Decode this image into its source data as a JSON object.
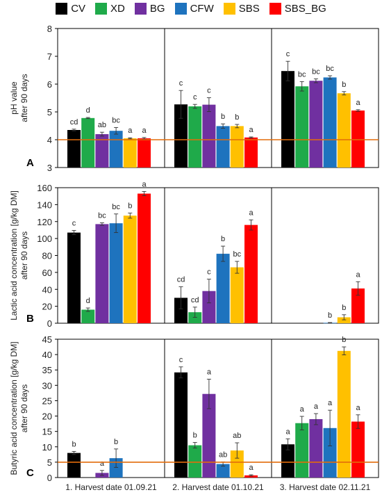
{
  "legend": [
    {
      "name": "CV",
      "color": "#000000"
    },
    {
      "name": "XD",
      "color": "#1faa4a"
    },
    {
      "name": "BG",
      "color": "#7030a0"
    },
    {
      "name": "CFW",
      "color": "#1e73be"
    },
    {
      "name": "SBS",
      "color": "#ffc000"
    },
    {
      "name": "SBS_BG",
      "color": "#ff0000"
    }
  ],
  "chart_data": [
    {
      "type": "bar",
      "panel_label": "A",
      "ylabel": [
        "pH value",
        "after 90 days"
      ],
      "ylim": [
        3,
        8
      ],
      "yticks": [
        "3",
        "4",
        "5",
        "6",
        "7",
        "8"
      ],
      "groups": [
        "1. Harvest date 01.09.21",
        "2. Harvest date 01.10.21",
        "3. Harvest date 02.11.21"
      ],
      "threshold": 4.0,
      "series": [
        {
          "name": "CV",
          "values": [
            4.35,
            5.27,
            6.47
          ],
          "errors": [
            0.03,
            0.5,
            0.35
          ],
          "letters": [
            "cd",
            "c",
            "c"
          ]
        },
        {
          "name": "XD",
          "values": [
            4.78,
            5.2,
            5.92
          ],
          "errors": [
            0.02,
            0.07,
            0.17
          ],
          "letters": [
            "d",
            "c",
            "bc"
          ]
        },
        {
          "name": "BG",
          "values": [
            4.2,
            5.26,
            6.12
          ],
          "errors": [
            0.07,
            0.25,
            0.07
          ],
          "letters": [
            "ab",
            "c",
            "bc"
          ]
        },
        {
          "name": "CFW",
          "values": [
            4.32,
            4.49,
            6.24
          ],
          "errors": [
            0.12,
            0.08,
            0.06
          ],
          "letters": [
            "bc",
            "b",
            "bc"
          ]
        },
        {
          "name": "SBS",
          "values": [
            4.05,
            4.49,
            5.67
          ],
          "errors": [
            0.02,
            0.06,
            0.06
          ],
          "letters": [
            "a",
            "b",
            "b"
          ]
        },
        {
          "name": "SBS_BG",
          "values": [
            4.05,
            4.08,
            5.05
          ],
          "errors": [
            0.03,
            0.02,
            0.03
          ],
          "letters": [
            "a",
            "a",
            "a"
          ]
        }
      ]
    },
    {
      "type": "bar",
      "panel_label": "B",
      "ylabel": [
        "Lactic acid concentration [g/kg DM]",
        "after 90 days"
      ],
      "ylim": [
        0,
        160
      ],
      "yticks": [
        "0",
        "20",
        "40",
        "60",
        "80",
        "100",
        "120",
        "140",
        "160"
      ],
      "groups": [
        "1. Harvest date 01.09.21",
        "2. Harvest date 01.10.21",
        "3. Harvest date 02.11.21"
      ],
      "threshold": null,
      "series": [
        {
          "name": "CV",
          "values": [
            107,
            30,
            null
          ],
          "errors": [
            2.5,
            13,
            null
          ],
          "letters": [
            "c",
            "cd",
            ""
          ]
        },
        {
          "name": "XD",
          "values": [
            16,
            13,
            null
          ],
          "errors": [
            2,
            6,
            null
          ],
          "letters": [
            "d",
            "cd",
            ""
          ]
        },
        {
          "name": "BG",
          "values": [
            117,
            38,
            null
          ],
          "errors": [
            1.5,
            14,
            null
          ],
          "letters": [
            "bc",
            "c",
            ""
          ]
        },
        {
          "name": "CFW",
          "values": [
            118,
            82,
            0.5
          ],
          "errors": [
            11,
            9,
            0.3
          ],
          "letters": [
            "bc",
            "b",
            "b"
          ]
        },
        {
          "name": "SBS",
          "values": [
            127,
            66,
            7
          ],
          "errors": [
            3,
            7,
            3
          ],
          "letters": [
            "b",
            "bc",
            "b"
          ]
        },
        {
          "name": "SBS_BG",
          "values": [
            153,
            116,
            41
          ],
          "errors": [
            2.5,
            6,
            8
          ],
          "letters": [
            "a",
            "a",
            "a"
          ]
        }
      ]
    },
    {
      "type": "bar",
      "panel_label": "C",
      "ylabel": [
        "Butyric acid concentration [g/kg DM]",
        "after 90 days"
      ],
      "ylim": [
        0,
        45
      ],
      "yticks": [
        "0",
        "5",
        "10",
        "15",
        "20",
        "25",
        "30",
        "35",
        "40",
        "45"
      ],
      "groups": [
        "1. Harvest date 01.09.21",
        "2. Harvest date 01.10.21",
        "3. Harvest date 02.11.21"
      ],
      "threshold": 5.0,
      "series": [
        {
          "name": "CV",
          "values": [
            8,
            34.2,
            10.8
          ],
          "errors": [
            0.5,
            1.8,
            1.8
          ],
          "letters": [
            "b",
            "c",
            "a"
          ]
        },
        {
          "name": "XD",
          "values": [
            null,
            10.5,
            17.7
          ],
          "errors": [
            null,
            0.9,
            2.2
          ],
          "letters": [
            "",
            "b",
            "a"
          ]
        },
        {
          "name": "BG",
          "values": [
            1.5,
            27.2,
            19
          ],
          "errors": [
            0.8,
            4.8,
            1.8
          ],
          "letters": [
            "a",
            "a",
            "a"
          ]
        },
        {
          "name": "CFW",
          "values": [
            6.3,
            4.4,
            16.1
          ],
          "errors": [
            3,
            0.7,
            5.8
          ],
          "letters": [
            "b",
            "ab",
            "a"
          ]
        },
        {
          "name": "SBS",
          "values": [
            null,
            8.8,
            41.2
          ],
          "errors": [
            null,
            2.5,
            1.3
          ],
          "letters": [
            "",
            "ab",
            "b"
          ]
        },
        {
          "name": "SBS_BG",
          "values": [
            null,
            0.7,
            18.2
          ],
          "errors": [
            null,
            0.2,
            2.2
          ],
          "letters": [
            "",
            "a",
            "a"
          ]
        }
      ]
    }
  ]
}
